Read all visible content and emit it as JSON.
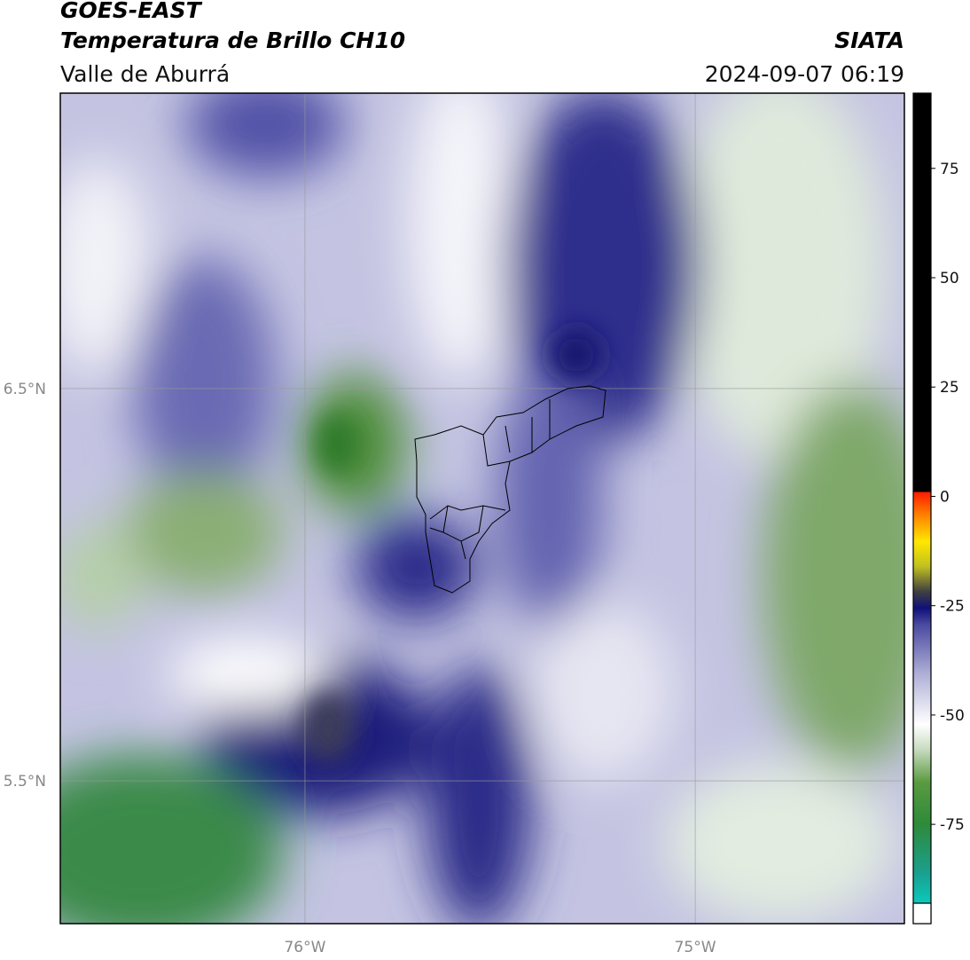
{
  "header": {
    "title": "GOES-EAST",
    "subtitle": "Temperatura de Brillo CH10",
    "region": "Valle de Aburrá",
    "source": "SIATA",
    "timestamp": "2024-09-07 06:19"
  },
  "map": {
    "xlim": [
      -76.627,
      -74.464
    ],
    "ylim": [
      5.136,
      7.253
    ],
    "lat_ticks": [
      {
        "value": 6.5,
        "label": "6.5°N"
      },
      {
        "value": 5.5,
        "label": "5.5°N"
      }
    ],
    "lon_ticks": [
      {
        "value": -76,
        "label": "76°W"
      },
      {
        "value": -75,
        "label": "75°W"
      }
    ]
  },
  "colorbar": {
    "lim": [
      -97.7,
      92.2
    ],
    "ticks": [
      75,
      50,
      25,
      0,
      -25,
      -50,
      -75
    ]
  }
}
